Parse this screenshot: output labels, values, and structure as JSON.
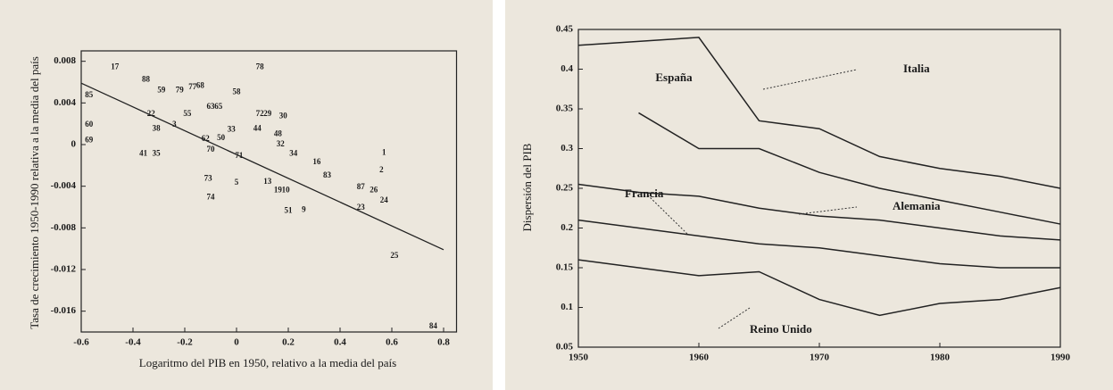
{
  "chart_data": [
    {
      "type": "scatter",
      "x_label": "Logaritmo del PIB en 1950, relativo a la media del país",
      "y_label": "Tasa de crecimiento 1950-1990 relativa a la media del país",
      "xlim": [
        -0.6,
        0.85
      ],
      "ylim": [
        -0.018,
        0.009
      ],
      "xticks": [
        -0.6,
        -0.4,
        -0.2,
        0,
        0.2,
        0.4,
        0.6,
        0.8
      ],
      "yticks": [
        0.008,
        0.004,
        0,
        -0.004,
        -0.008,
        -0.012,
        -0.016
      ],
      "point_labels": [
        "17",
        "85",
        "60",
        "69",
        "78",
        "88",
        "59",
        "79",
        "77",
        "68",
        "58",
        "22",
        "38",
        "55",
        "63",
        "65",
        "72",
        "29",
        "30",
        "3",
        "62",
        "50",
        "33",
        "44",
        "48",
        "41",
        "35",
        "70",
        "71",
        "32",
        "34",
        "16",
        "83",
        "2",
        "1",
        "73",
        "5",
        "13",
        "19",
        "10",
        "74",
        "87",
        "26",
        "24",
        "23",
        "9",
        "51",
        "25",
        "84"
      ],
      "x": [
        -0.47,
        -0.57,
        -0.57,
        -0.57,
        0.09,
        -0.35,
        -0.29,
        -0.22,
        -0.17,
        -0.14,
        0.0,
        -0.33,
        -0.31,
        -0.19,
        -0.1,
        -0.07,
        0.09,
        0.12,
        0.18,
        -0.24,
        -0.12,
        -0.06,
        -0.02,
        0.08,
        0.16,
        -0.36,
        -0.31,
        -0.1,
        0.01,
        0.17,
        0.22,
        0.31,
        0.35,
        0.56,
        0.57,
        -0.11,
        0.0,
        0.12,
        0.16,
        0.19,
        -0.1,
        0.48,
        0.53,
        0.57,
        0.48,
        0.26,
        0.2,
        0.61,
        0.76
      ],
      "values": [
        0.0074,
        0.0047,
        0.0019,
        0.0004,
        0.0074,
        0.0062,
        0.0052,
        0.0052,
        0.0055,
        0.0056,
        0.005,
        0.0029,
        0.0015,
        0.0029,
        0.0036,
        0.0036,
        0.0029,
        0.0029,
        0.0027,
        0.0019,
        0.0005,
        0.0006,
        0.0014,
        0.0015,
        0.001,
        -0.0009,
        -0.0009,
        -0.0005,
        -0.0011,
        0.0,
        -0.0009,
        -0.0017,
        -0.003,
        -0.0025,
        -0.0008,
        -0.0033,
        -0.0037,
        -0.0036,
        -0.0044,
        -0.0044,
        -0.0051,
        -0.0041,
        -0.0044,
        -0.0054,
        -0.0061,
        -0.0063,
        -0.0064,
        -0.0107,
        -0.0175
      ],
      "fit_line": {
        "x": [
          -0.6,
          0.8
        ],
        "values": [
          0.0059,
          -0.0101
        ]
      },
      "color": "#222222"
    },
    {
      "type": "line",
      "y_label": "Dispersión del PIB",
      "x": [
        1950,
        1955,
        1960,
        1965,
        1970,
        1975,
        1980,
        1985,
        1990
      ],
      "xlim": [
        1950,
        1990
      ],
      "ylim": [
        0.05,
        0.45
      ],
      "xticks": [
        1950,
        1960,
        1970,
        1980,
        1990
      ],
      "yticks": [
        0.05,
        0.1,
        0.15,
        0.2,
        0.25,
        0.3,
        0.35,
        0.4,
        0.45
      ],
      "series": [
        {
          "name": "Italia",
          "color": "#222222",
          "values": [
            0.43,
            0.435,
            0.44,
            0.335,
            0.325,
            0.29,
            0.275,
            0.265,
            0.25
          ]
        },
        {
          "name": "España",
          "color": "#222222",
          "values": [
            null,
            0.345,
            0.3,
            0.3,
            0.27,
            0.25,
            0.235,
            0.22,
            0.205
          ]
        },
        {
          "name": "Alemania",
          "color": "#222222",
          "values": [
            0.255,
            0.245,
            0.24,
            0.225,
            0.215,
            0.21,
            0.2,
            0.19,
            0.185
          ]
        },
        {
          "name": "Francia",
          "color": "#222222",
          "values": [
            0.21,
            0.2,
            0.19,
            0.18,
            0.175,
            0.165,
            0.155,
            0.15,
            0.15
          ]
        },
        {
          "name": "Reino Unido",
          "color": "#222222",
          "values": [
            0.16,
            0.15,
            0.14,
            0.145,
            0.11,
            0.09,
            0.105,
            0.11,
            0.125
          ]
        }
      ]
    }
  ]
}
